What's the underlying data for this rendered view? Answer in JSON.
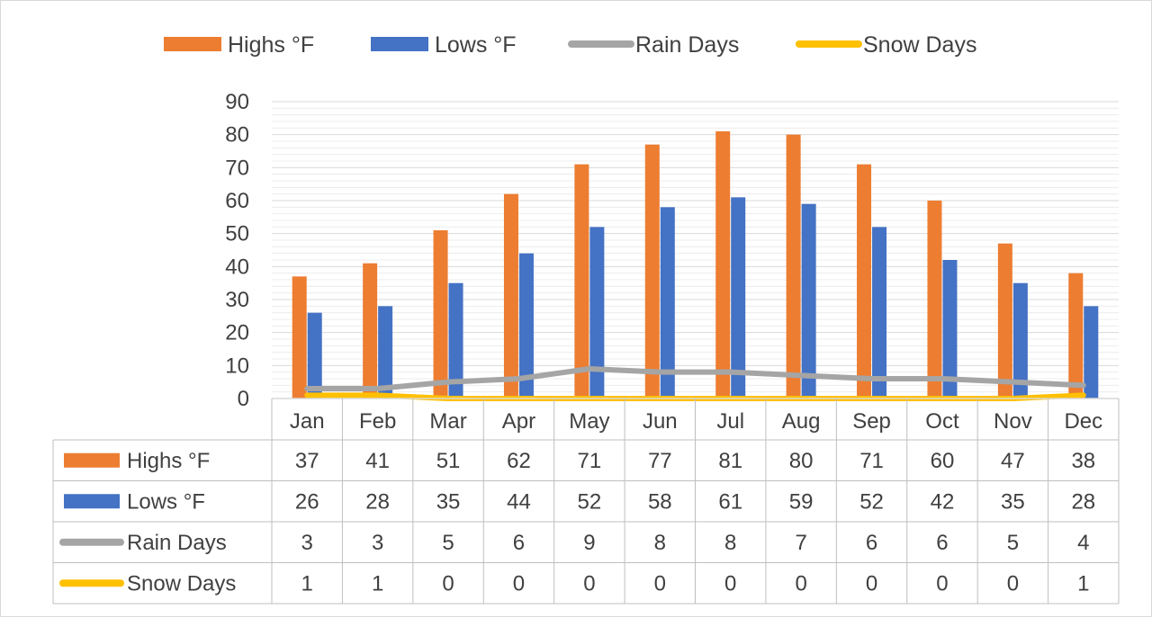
{
  "chart_data": {
    "type": "bar",
    "categories": [
      "Jan",
      "Feb",
      "Mar",
      "Apr",
      "May",
      "Jun",
      "Jul",
      "Aug",
      "Sep",
      "Oct",
      "Nov",
      "Dec"
    ],
    "ylim": [
      0,
      90
    ],
    "yticks": [
      "0",
      "10",
      "20",
      "30",
      "40",
      "50",
      "60",
      "70",
      "80",
      "90"
    ],
    "grid": true,
    "legend_position": "top",
    "data_table": true,
    "series": [
      {
        "name": "Highs °F",
        "kind": "bar",
        "color": "#ED7D31",
        "values": [
          37,
          41,
          51,
          62,
          71,
          77,
          81,
          80,
          71,
          60,
          47,
          38
        ]
      },
      {
        "name": "Lows °F",
        "kind": "bar",
        "color": "#4472C4",
        "values": [
          26,
          28,
          35,
          44,
          52,
          58,
          61,
          59,
          52,
          42,
          35,
          28
        ]
      },
      {
        "name": "Rain Days",
        "kind": "line",
        "color": "#A5A5A5",
        "values": [
          3,
          3,
          5,
          6,
          9,
          8,
          8,
          7,
          6,
          6,
          5,
          4
        ]
      },
      {
        "name": "Snow Days",
        "kind": "line",
        "color": "#FFC000",
        "values": [
          1,
          1,
          0,
          0,
          0,
          0,
          0,
          0,
          0,
          0,
          0,
          1
        ]
      }
    ]
  }
}
